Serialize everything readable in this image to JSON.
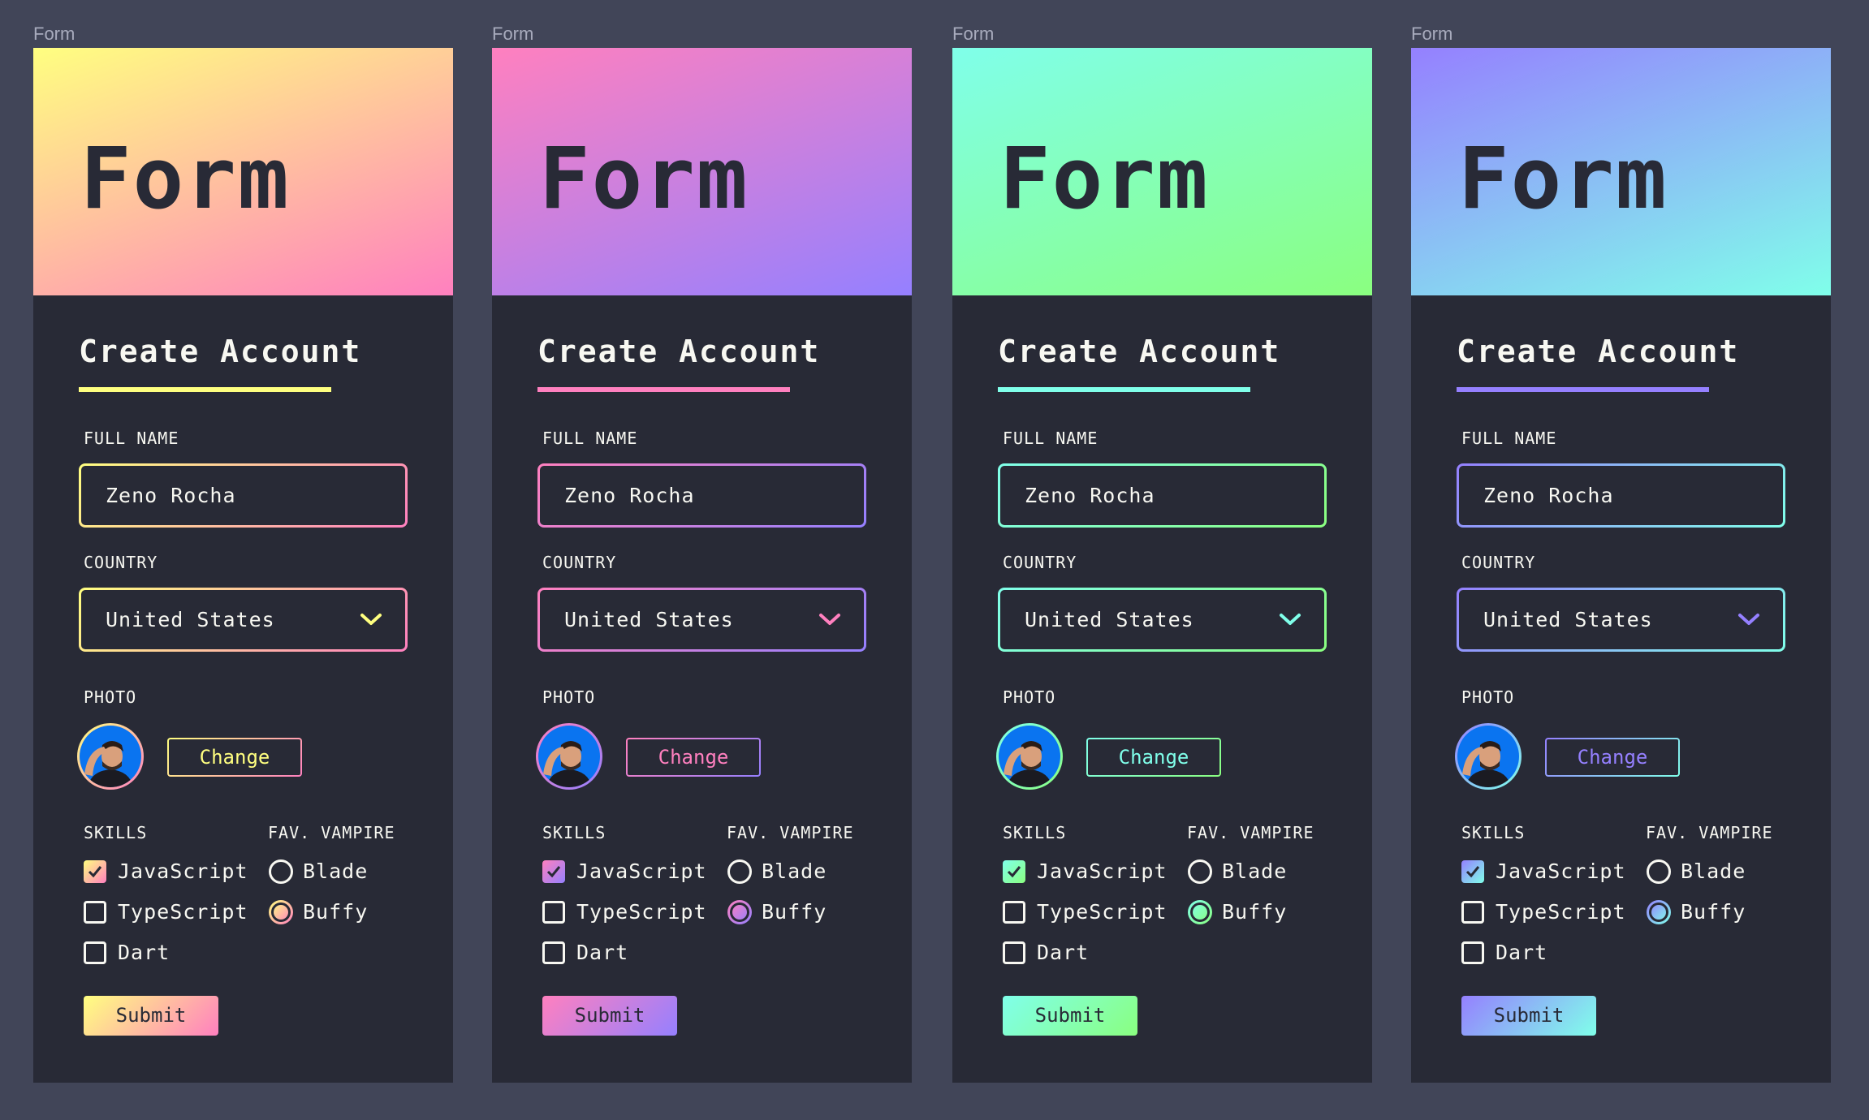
{
  "frame_label": "Form",
  "form": {
    "hero_title": "Form",
    "title": "Create Account",
    "full_name_label": "FULL NAME",
    "full_name_value": "Zeno Rocha",
    "country_label": "COUNTRY",
    "country_value": "United States",
    "photo_label": "PHOTO",
    "change_label": "Change",
    "skills_label": "SKILLS",
    "skills": [
      {
        "label": "JavaScript",
        "checked": true
      },
      {
        "label": "TypeScript",
        "checked": false
      },
      {
        "label": "Dart",
        "checked": false
      }
    ],
    "vampire_label": "FAV. VAMPIRE",
    "vampires": [
      {
        "label": "Blade",
        "selected": false
      },
      {
        "label": "Buffy",
        "selected": true
      }
    ],
    "submit_label": "Submit"
  },
  "themes": [
    {
      "from": "#ffff80",
      "to": "#ff80bf"
    },
    {
      "from": "#ff80bf",
      "to": "#9580ff"
    },
    {
      "from": "#80ffea",
      "to": "#8aff80"
    },
    {
      "from": "#9580ff",
      "to": "#80ffea"
    }
  ],
  "colors": {
    "background": "#414558",
    "card": "#282a36",
    "text": "#f8f8f2"
  }
}
